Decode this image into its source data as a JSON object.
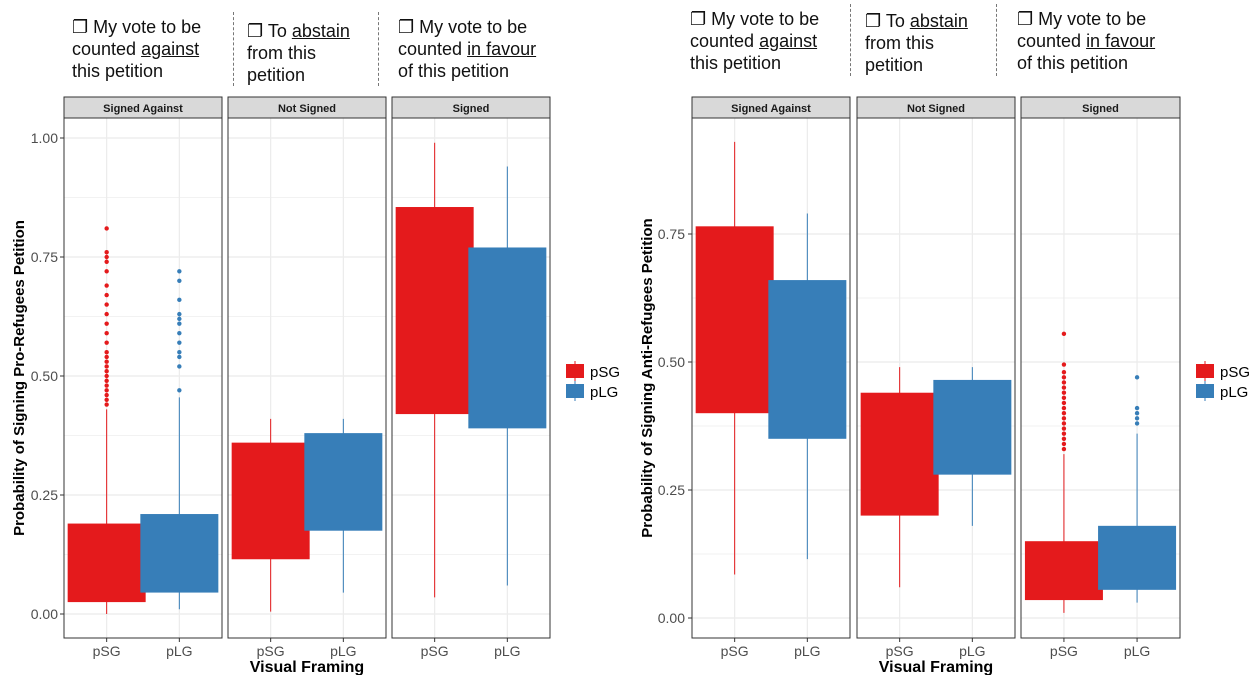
{
  "header_options": {
    "against": {
      "box": "❐",
      "prefix": " My vote to be",
      "line2_plain": "counted ",
      "line2_underlined": "against",
      "line3": "this petition"
    },
    "abstain": {
      "box": "❐",
      "prefix": " To ",
      "line1_underlined": "abstain",
      "line2": "from this",
      "line3": "petition"
    },
    "favour": {
      "box": "❐",
      "prefix": " My vote to be",
      "line2_plain": "counted ",
      "line2_underlined": "in favour",
      "line3": "of this petition"
    }
  },
  "colors": {
    "pSG": "#E41A1C",
    "pLG": "#377EB8",
    "strip_bg": "#D9D9D9",
    "grid": "#EBEBEB"
  },
  "chart_data": [
    {
      "type": "boxplot",
      "ylabel": "Probability of Signing Pro-Refugees Petition",
      "xlabel": "Visual Framing",
      "ylim": [
        0,
        1
      ],
      "yticks": [
        "0.00",
        "0.25",
        "0.50",
        "0.75",
        "1.00"
      ],
      "categories": [
        "pSG",
        "pLG"
      ],
      "legend": {
        "position": "right",
        "entries": [
          "pSG",
          "pLG"
        ]
      },
      "grid": true,
      "panels": [
        {
          "strip": "Signed Against",
          "boxes": [
            {
              "name": "pSG",
              "lower": 0.0,
              "q1": 0.025,
              "q3": 0.19,
              "upper": 0.43,
              "outliers": [
                0.44,
                0.45,
                0.46,
                0.47,
                0.48,
                0.49,
                0.5,
                0.51,
                0.52,
                0.53,
                0.54,
                0.55,
                0.57,
                0.59,
                0.61,
                0.63,
                0.65,
                0.67,
                0.69,
                0.72,
                0.74,
                0.75,
                0.76,
                0.81
              ]
            },
            {
              "name": "pLG",
              "lower": 0.01,
              "q1": 0.045,
              "q3": 0.21,
              "upper": 0.455,
              "outliers": [
                0.47,
                0.52,
                0.54,
                0.55,
                0.57,
                0.59,
                0.61,
                0.62,
                0.63,
                0.66,
                0.7,
                0.72
              ]
            }
          ]
        },
        {
          "strip": "Not Signed",
          "boxes": [
            {
              "name": "pSG",
              "lower": 0.005,
              "q1": 0.115,
              "q3": 0.36,
              "upper": 0.41,
              "outliers": []
            },
            {
              "name": "pLG",
              "lower": 0.045,
              "q1": 0.175,
              "q3": 0.38,
              "upper": 0.41,
              "outliers": []
            }
          ]
        },
        {
          "strip": "Signed",
          "boxes": [
            {
              "name": "pSG",
              "lower": 0.035,
              "q1": 0.42,
              "q3": 0.855,
              "upper": 0.99,
              "outliers": []
            },
            {
              "name": "pLG",
              "lower": 0.06,
              "q1": 0.39,
              "q3": 0.77,
              "upper": 0.94,
              "outliers": []
            }
          ]
        }
      ]
    },
    {
      "type": "boxplot",
      "ylabel": "Probability of Signing Anti-Refugees Petition",
      "xlabel": "Visual Framing",
      "ylim": [
        0,
        0.95
      ],
      "yticks": [
        "0.00",
        "0.25",
        "0.50",
        "0.75"
      ],
      "categories": [
        "pSG",
        "pLG"
      ],
      "legend": {
        "position": "right",
        "entries": [
          "pSG",
          "pLG"
        ]
      },
      "grid": true,
      "panels": [
        {
          "strip": "Signed Against",
          "boxes": [
            {
              "name": "pSG",
              "lower": 0.085,
              "q1": 0.4,
              "q3": 0.765,
              "upper": 0.93,
              "outliers": []
            },
            {
              "name": "pLG",
              "lower": 0.115,
              "q1": 0.35,
              "q3": 0.66,
              "upper": 0.79,
              "outliers": []
            }
          ]
        },
        {
          "strip": "Not Signed",
          "boxes": [
            {
              "name": "pSG",
              "lower": 0.06,
              "q1": 0.2,
              "q3": 0.44,
              "upper": 0.49,
              "outliers": []
            },
            {
              "name": "pLG",
              "lower": 0.18,
              "q1": 0.28,
              "q3": 0.465,
              "upper": 0.49,
              "outliers": []
            }
          ]
        },
        {
          "strip": "Signed",
          "boxes": [
            {
              "name": "pSG",
              "lower": 0.01,
              "q1": 0.035,
              "q3": 0.15,
              "upper": 0.32,
              "outliers": [
                0.33,
                0.34,
                0.35,
                0.36,
                0.37,
                0.38,
                0.39,
                0.4,
                0.41,
                0.42,
                0.43,
                0.44,
                0.45,
                0.46,
                0.47,
                0.48,
                0.495,
                0.555
              ]
            },
            {
              "name": "pLG",
              "lower": 0.03,
              "q1": 0.055,
              "q3": 0.18,
              "upper": 0.36,
              "outliers": [
                0.38,
                0.39,
                0.4,
                0.41,
                0.47
              ]
            }
          ]
        }
      ]
    }
  ]
}
